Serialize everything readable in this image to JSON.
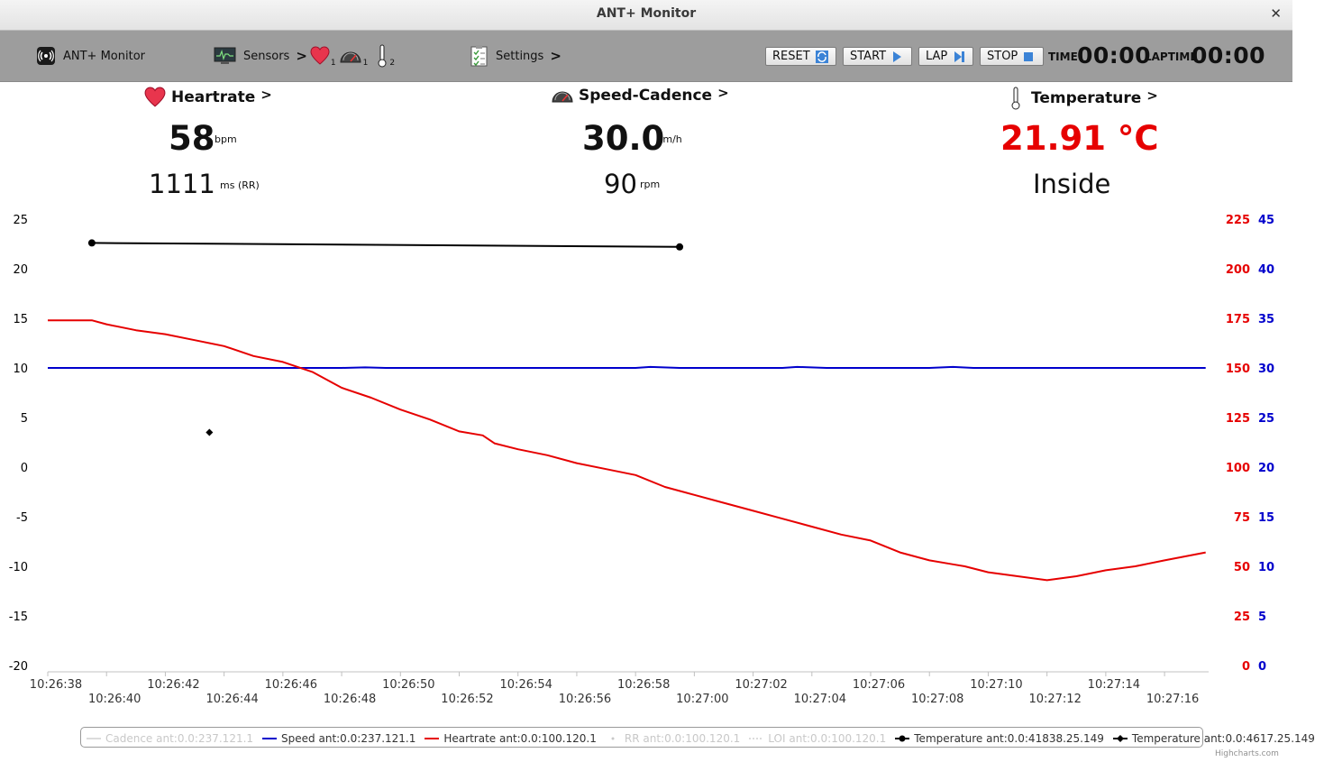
{
  "window": {
    "title": "ANT+ Monitor",
    "close": "✕"
  },
  "toolbar": {
    "app_label": "ANT+ Monitor",
    "sensors_label": "Sensors",
    "sensors_arrow": ">",
    "heart_count": "1",
    "speed_count": "1",
    "temp_count": "2",
    "settings_label": "Settings",
    "settings_arrow": ">",
    "reset_label": "RESET",
    "start_label": "START",
    "lap_label": "LAP",
    "stop_label": "STOP",
    "time_label": "TIME",
    "time_value": "00:00",
    "laptime_label": "LAPTIME",
    "laptime_value": "00:00"
  },
  "panels": {
    "heartrate": {
      "title": "Heartrate",
      "arrow": ">",
      "value": "58",
      "unit": "bpm",
      "rr_value": "1111",
      "rr_unit": "ms (RR)"
    },
    "speed": {
      "title": "Speed-Cadence",
      "arrow": ">",
      "value": "30.0",
      "unit": "km/h",
      "cadence_value": "90",
      "cadence_unit": "rpm"
    },
    "temperature": {
      "title": "Temperature",
      "arrow": ">",
      "value": "21.91 °C",
      "location": "Inside"
    }
  },
  "colors": {
    "heartrate": "#e60000",
    "speed": "#0000cc",
    "temperature": "#000000",
    "cadence": "#bbbbbb"
  },
  "credit": "Highcharts.com",
  "chart_data": {
    "type": "line",
    "title": "",
    "x_ticks_upper": [
      "10:26:38",
      "10:26:42",
      "10:26:46",
      "10:26:50",
      "10:26:54",
      "10:26:58",
      "10:27:02",
      "10:27:06",
      "10:27:10",
      "10:27:14"
    ],
    "x_ticks_lower": [
      "10:26:40",
      "10:26:44",
      "10:26:48",
      "10:26:52",
      "10:26:56",
      "10:27:00",
      "10:27:04",
      "10:27:08",
      "10:27:12",
      "10:27:16"
    ],
    "xlim": [
      "10:26:38",
      "10:27:17.5"
    ],
    "y_axes": [
      {
        "id": "temp",
        "side": "left",
        "color": "#000000",
        "ylim": [
          -20,
          25
        ],
        "ticks": [
          "25",
          "20",
          "15",
          "10",
          "5",
          "0",
          "-5",
          "-10",
          "-15",
          "-20"
        ]
      },
      {
        "id": "hr",
        "side": "right",
        "color": "#e60000",
        "ylim": [
          0,
          225
        ],
        "ticks": [
          "225",
          "200",
          "175",
          "150",
          "125",
          "100",
          "75",
          "50",
          "25",
          "0"
        ]
      },
      {
        "id": "speed",
        "side": "right",
        "color": "#0000cc",
        "ylim": [
          0,
          45
        ],
        "ticks": [
          "45",
          "40",
          "35",
          "30",
          "25",
          "20",
          "15",
          "10",
          "5",
          "0"
        ]
      }
    ],
    "series": [
      {
        "name": "Cadence ant:0.0:237.121.1",
        "axis": "speed",
        "color": "#bbbbbb",
        "visible": false,
        "marker": "none",
        "points": []
      },
      {
        "name": "Speed ant:0.0:237.121.1",
        "axis": "speed",
        "color": "#0000cc",
        "visible": true,
        "marker": "none",
        "points": [
          [
            "10:26:38",
            30.0
          ],
          [
            "10:26:48",
            30.0
          ],
          [
            "10:26:48.8",
            30.05
          ],
          [
            "10:26:49.5",
            30.0
          ],
          [
            "10:26:58",
            30.0
          ],
          [
            "10:26:58.5",
            30.1
          ],
          [
            "10:26:59.5",
            30.0
          ],
          [
            "10:27:03",
            30.0
          ],
          [
            "10:27:03.5",
            30.1
          ],
          [
            "10:27:04.5",
            30.0
          ],
          [
            "10:27:08",
            30.0
          ],
          [
            "10:27:08.8",
            30.1
          ],
          [
            "10:27:09.5",
            30.0
          ],
          [
            "10:27:17.4",
            30.0
          ]
        ]
      },
      {
        "name": "Heartrate ant:0.0:100.120.1",
        "axis": "hr",
        "color": "#e60000",
        "visible": true,
        "marker": "none",
        "points": [
          [
            "10:26:38",
            174
          ],
          [
            "10:26:39.5",
            174
          ],
          [
            "10:26:40",
            172
          ],
          [
            "10:26:41",
            169
          ],
          [
            "10:26:42",
            167
          ],
          [
            "10:26:43",
            164
          ],
          [
            "10:26:44",
            161
          ],
          [
            "10:26:45",
            156
          ],
          [
            "10:26:46",
            153
          ],
          [
            "10:26:47",
            148
          ],
          [
            "10:26:48",
            140
          ],
          [
            "10:26:49",
            135
          ],
          [
            "10:26:50",
            129
          ],
          [
            "10:26:51",
            124
          ],
          [
            "10:26:52",
            118
          ],
          [
            "10:26:52.8",
            116
          ],
          [
            "10:26:53.2",
            112
          ],
          [
            "10:26:54",
            109
          ],
          [
            "10:26:55",
            106
          ],
          [
            "10:26:56",
            102
          ],
          [
            "10:26:57",
            99
          ],
          [
            "10:26:58",
            96
          ],
          [
            "10:26:59",
            90
          ],
          [
            "10:27:00",
            86
          ],
          [
            "10:27:01",
            82
          ],
          [
            "10:27:02",
            78
          ],
          [
            "10:27:03",
            74
          ],
          [
            "10:27:04",
            70
          ],
          [
            "10:27:05",
            66
          ],
          [
            "10:27:06",
            63
          ],
          [
            "10:27:07",
            57
          ],
          [
            "10:27:08",
            53
          ],
          [
            "10:27:08.8",
            51
          ],
          [
            "10:27:09.2",
            50
          ],
          [
            "10:27:10",
            47
          ],
          [
            "10:27:11",
            45
          ],
          [
            "10:27:12",
            43
          ],
          [
            "10:27:13",
            45
          ],
          [
            "10:27:14",
            48
          ],
          [
            "10:27:15",
            50
          ],
          [
            "10:27:16",
            53
          ],
          [
            "10:27:17.4",
            57
          ]
        ]
      },
      {
        "name": "RR ant:0.0:100.120.1",
        "axis": "hr",
        "color": "#bbbbbb",
        "visible": false,
        "marker": "none",
        "points": []
      },
      {
        "name": "LOI ant:0.0:100.120.1",
        "axis": "hr",
        "color": "#bbbbbb",
        "visible": false,
        "marker": "none",
        "points": []
      },
      {
        "name": "Temperature ant:0.0:41838.25.149",
        "axis": "temp",
        "color": "#000000",
        "visible": true,
        "marker": "circle",
        "points": [
          [
            "10:26:39.5",
            22.6
          ],
          [
            "10:26:59.5",
            22.2
          ]
        ]
      },
      {
        "name": "Temperature ant:0.0:4617.25.149",
        "axis": "temp",
        "color": "#000000",
        "visible": true,
        "marker": "diamond",
        "points": [
          [
            "10:26:43.5",
            3.5
          ]
        ]
      }
    ],
    "grid": false,
    "legend_position": "bottom"
  }
}
